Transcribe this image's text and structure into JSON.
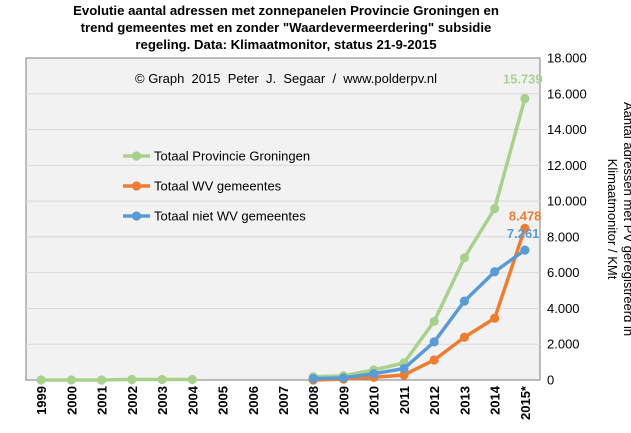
{
  "title_lines": [
    "Evolutie aantal adressen met zonnepanelen Provincie Groningen en",
    "trend gemeentes met en zonder \"Waardevermeerdering\"  subsidie",
    "regeling. Data: Klimaatmonitor,  status 21-9-2015"
  ],
  "chart_data": {
    "type": "line",
    "title": "Evolutie aantal adressen met zonnepanelen Provincie Groningen en trend gemeentes met en zonder \"Waardevermeerdering\"  subsidie regeling. Data: Klimaatmonitor,  status 21-9-2015",
    "annotation": "© Graph  2015  Peter  J.  Segaar  /  www.polderpv.nl",
    "categories": [
      "1999",
      "2000",
      "2001",
      "2002",
      "2003",
      "2004",
      "2005",
      "2006",
      "2007",
      "2008",
      "2009",
      "2010",
      "2011",
      "2012",
      "2013",
      "2014",
      "2015*"
    ],
    "ylabel_lines": [
      "Aantal adressen met PV geregistreerd in",
      "Klimaatmonitor  / KMt"
    ],
    "ylim": [
      0,
      18000
    ],
    "ytick_labels": [
      "0",
      "2.000",
      "4.000",
      "6.000",
      "8.000",
      "10.000",
      "12.000",
      "14.000",
      "16.000",
      "18.000"
    ],
    "ytick_values": [
      0,
      2000,
      4000,
      6000,
      8000,
      10000,
      12000,
      14000,
      16000,
      18000
    ],
    "y_axis_position": "right",
    "grid": "horizontal",
    "legend_position": "upper-left",
    "series": [
      {
        "name": "Totaal Provincie Groningen",
        "color": "#A9D18E",
        "values": [
          0,
          0,
          0,
          30,
          30,
          30,
          null,
          null,
          null,
          180,
          230,
          560,
          950,
          3280,
          6830,
          9580,
          15739
        ],
        "end_label": "15.739"
      },
      {
        "name": "Totaal WV gemeentes",
        "color": "#ED7D31",
        "values": [
          null,
          null,
          null,
          null,
          null,
          null,
          null,
          null,
          null,
          0,
          50,
          150,
          280,
          1120,
          2390,
          3450,
          8478
        ],
        "end_label": "8.478"
      },
      {
        "name": "Totaal niet WV gemeentes",
        "color": "#5B9BD5",
        "values": [
          null,
          null,
          null,
          null,
          null,
          null,
          null,
          null,
          null,
          80,
          120,
          350,
          640,
          2130,
          4410,
          6050,
          7261
        ],
        "end_label": "7.261"
      }
    ]
  }
}
